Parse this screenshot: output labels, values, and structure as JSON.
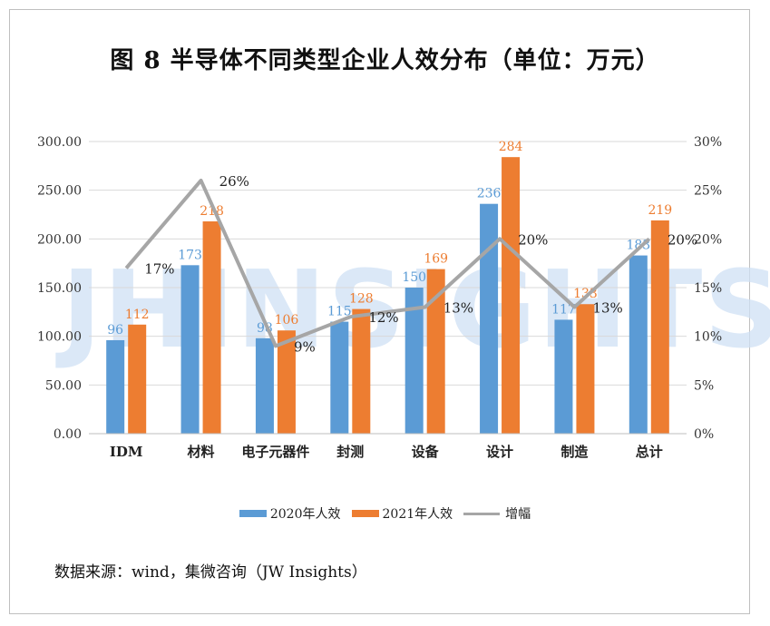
{
  "title": "图 8  半导体不同类型企业人效分布（单位：万元）",
  "watermark": "JHINSIGHTS",
  "source": "数据来源：wind，集微咨询（JW Insights）",
  "colors": {
    "s2020": "#5b9bd5",
    "s2021": "#ed7d31",
    "growth": "#a6a6a6",
    "grid": "#d9d9d9"
  },
  "chart_data": {
    "type": "bar",
    "categories": [
      "IDM",
      "材料",
      "电子元器件",
      "封测",
      "设备",
      "设计",
      "制造",
      "总计"
    ],
    "series": [
      {
        "name": "2020年人效",
        "type": "bar",
        "axis": "left",
        "values": [
          96,
          173,
          98,
          115,
          150,
          236,
          117,
          183
        ]
      },
      {
        "name": "2021年人效",
        "type": "bar",
        "axis": "left",
        "values": [
          112,
          218,
          106,
          128,
          169,
          284,
          133,
          219
        ]
      },
      {
        "name": "增幅",
        "type": "line",
        "axis": "right",
        "values": [
          17,
          26,
          9,
          12,
          13,
          20,
          13,
          20
        ]
      }
    ],
    "left_axis": {
      "ylim": [
        0,
        300
      ],
      "ticks": [
        "0.00",
        "50.00",
        "100.00",
        "150.00",
        "200.00",
        "250.00",
        "300.00"
      ]
    },
    "right_axis": {
      "ylim": [
        0,
        30
      ],
      "ticks": [
        "0%",
        "5%",
        "10%",
        "15%",
        "20%",
        "25%",
        "30%"
      ]
    },
    "bar_labels": [
      [
        "96",
        "173",
        "98",
        "115",
        "150",
        "236",
        "117",
        "183"
      ],
      [
        "112",
        "218",
        "106",
        "128",
        "169",
        "284",
        "133",
        "219"
      ]
    ],
    "line_labels": [
      "17%",
      "26%",
      "9%",
      "12%",
      "13%",
      "20%",
      "13%",
      "20%"
    ],
    "grid": true,
    "legend_position": "bottom"
  }
}
